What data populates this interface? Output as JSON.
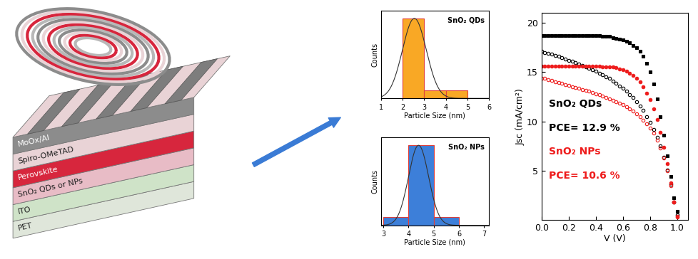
{
  "diagram": {
    "layers": [
      "MoOx/Al",
      "Spiro-OMeTAD",
      "Perovskite",
      "SnO₂ QDs or NPs",
      "ITO",
      "PET"
    ],
    "colors": [
      "#8c8c8c",
      "#e9d3d6",
      "#d7263d",
      "#e8bcc6",
      "#cfe3c8",
      "#dfe6da"
    ]
  },
  "chart_data": [
    {
      "type": "histogram",
      "title": "SnO₂ QDs",
      "x_label": "Particle Size (nm)",
      "y_label": "Counts",
      "bins": [
        2,
        3,
        4,
        5
      ],
      "counts": [
        10,
        1,
        1
      ],
      "fit": {
        "mean": 2.55,
        "sigma": 0.55,
        "peak": 10
      },
      "xlim": [
        1,
        6
      ],
      "xticks": [
        1,
        2,
        3,
        4,
        5,
        6
      ],
      "ylim": [
        0,
        11
      ],
      "tick_labels": "x",
      "color": "#f9a825"
    },
    {
      "type": "histogram",
      "title": "SnO₂ NPs",
      "x_label": "Particle Size (nm)",
      "y_label": "Counts",
      "bins": [
        3,
        4,
        5,
        6
      ],
      "counts": [
        1,
        10,
        1
      ],
      "fit": {
        "mean": 4.4,
        "sigma": 0.4,
        "peak": 10
      },
      "xlim": [
        2.9,
        7.2
      ],
      "xticks": [
        3,
        4,
        5,
        6,
        7
      ],
      "ylim": [
        0,
        11
      ],
      "tick_labels": "x",
      "color": "#3d7fd9"
    },
    {
      "type": "line",
      "x_label": "V (V)",
      "y_label": "Jsc (mA/cm²)",
      "x": [
        0.0,
        0.025,
        0.05,
        0.075,
        0.1,
        0.125,
        0.15,
        0.175,
        0.2,
        0.225,
        0.25,
        0.275,
        0.3,
        0.325,
        0.35,
        0.375,
        0.4,
        0.425,
        0.45,
        0.475,
        0.5,
        0.525,
        0.55,
        0.575,
        0.6,
        0.625,
        0.65,
        0.675,
        0.7,
        0.725,
        0.75,
        0.775,
        0.8,
        0.825,
        0.85,
        0.875,
        0.9,
        0.925,
        0.95,
        0.975,
        1.0
      ],
      "series": [
        {
          "color": "#000000",
          "marker": "square",
          "line_style": "none",
          "values": [
            18.7,
            18.7,
            18.7,
            18.7,
            18.7,
            18.7,
            18.7,
            18.7,
            18.7,
            18.7,
            18.7,
            18.7,
            18.7,
            18.7,
            18.7,
            18.7,
            18.7,
            18.7,
            18.65,
            18.6,
            18.6,
            18.5,
            18.45,
            18.35,
            18.25,
            18.1,
            17.95,
            17.7,
            17.45,
            17.1,
            16.6,
            15.9,
            15.0,
            13.8,
            12.3,
            10.5,
            8.6,
            6.5,
            4.4,
            2.3,
            0.9
          ]
        },
        {
          "color": "#000000",
          "marker": "open_circle",
          "line_style": "none",
          "values": [
            17.1,
            17.0,
            16.9,
            16.8,
            16.7,
            16.6,
            16.45,
            16.35,
            16.2,
            16.1,
            15.95,
            15.8,
            15.7,
            15.55,
            15.4,
            15.25,
            15.1,
            14.9,
            14.75,
            14.55,
            14.35,
            14.1,
            13.9,
            13.6,
            13.35,
            13.05,
            12.75,
            12.4,
            12.0,
            11.6,
            11.1,
            10.5,
            9.9,
            9.2,
            8.4,
            7.5,
            6.4,
            5.1,
            3.6,
            1.8,
            0.5
          ]
        },
        {
          "color": "#ee1c1c",
          "marker": "circle",
          "line_style": "none",
          "values": [
            15.6,
            15.6,
            15.6,
            15.6,
            15.6,
            15.6,
            15.6,
            15.6,
            15.6,
            15.6,
            15.6,
            15.6,
            15.6,
            15.6,
            15.6,
            15.6,
            15.6,
            15.6,
            15.55,
            15.55,
            15.55,
            15.5,
            15.45,
            15.35,
            15.25,
            15.1,
            14.9,
            14.65,
            14.35,
            14.0,
            13.5,
            12.9,
            12.2,
            11.3,
            10.2,
            8.9,
            7.4,
            5.7,
            3.8,
            1.8,
            0.3
          ]
        },
        {
          "color": "#ee1c1c",
          "marker": "open_circle",
          "line_style": "none",
          "values": [
            14.4,
            14.35,
            14.25,
            14.15,
            14.05,
            13.95,
            13.85,
            13.75,
            13.65,
            13.55,
            13.45,
            13.35,
            13.25,
            13.15,
            13.05,
            12.95,
            12.8,
            12.7,
            12.55,
            12.45,
            12.3,
            12.15,
            12.0,
            11.85,
            11.7,
            11.5,
            11.3,
            11.05,
            10.8,
            10.5,
            10.15,
            9.75,
            9.3,
            8.8,
            8.1,
            7.3,
            6.3,
            5.0,
            3.5,
            1.8,
            0.4
          ]
        }
      ],
      "annotations": [
        {
          "text": "SnO₂ QDs",
          "color": "#000000"
        },
        {
          "text": "PCE= 12.9 %",
          "color": "#000000"
        },
        {
          "text": "SnO₂ NPs",
          "color": "#ee1c1c"
        },
        {
          "text": "PCE= 10.6 %",
          "color": "#ee1c1c"
        }
      ],
      "xlim": [
        0,
        1.08
      ],
      "xticks": [
        0.0,
        0.2,
        0.4,
        0.6,
        0.8,
        1.0
      ],
      "ylim": [
        0,
        21
      ],
      "yticks": [
        5,
        10,
        15,
        20
      ]
    }
  ]
}
